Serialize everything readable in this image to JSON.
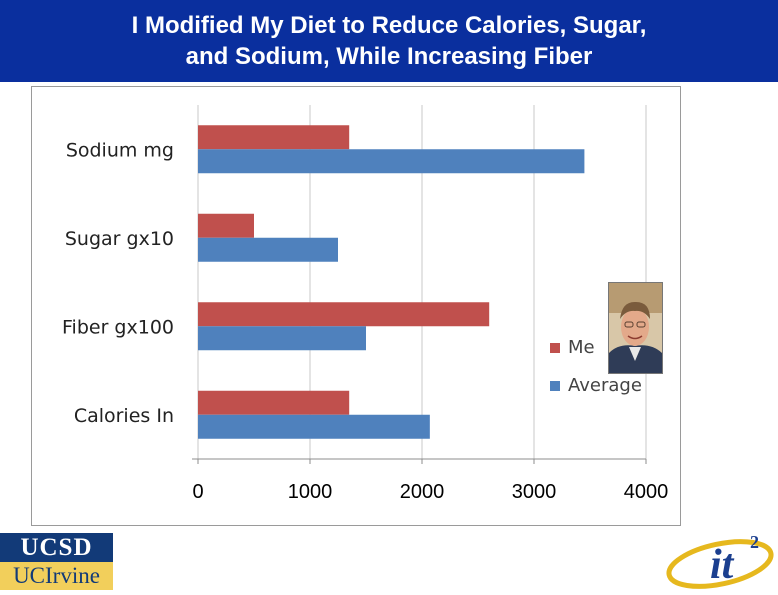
{
  "slide": {
    "title_line1": "I Modified My Diet to Reduce Calories, Sugar,",
    "title_line2": "and Sodium, While Increasing Fiber"
  },
  "logos": {
    "ucsd": "UCSD",
    "uci": "UCIrvine",
    "it2": "it",
    "it2_superscript": "2"
  },
  "colors": {
    "title_bar": "#0a2f9e",
    "me": "#c0504d",
    "average": "#4f81bd"
  },
  "chart_data": {
    "type": "bar",
    "orientation": "horizontal",
    "categories": [
      "Sodium mg",
      "Sugar gx10",
      "Fiber gx100",
      "Calories In"
    ],
    "series": [
      {
        "name": "Me",
        "values": [
          1350,
          500,
          2600,
          1350
        ],
        "color": "#c0504d"
      },
      {
        "name": "Average",
        "values": [
          3450,
          1250,
          1500,
          2070
        ],
        "color": "#4f81bd"
      }
    ],
    "x_ticks": [
      0,
      1000,
      2000,
      3000,
      4000
    ],
    "xlim": [
      0,
      4000
    ],
    "grid": true,
    "legend_position": "right"
  }
}
